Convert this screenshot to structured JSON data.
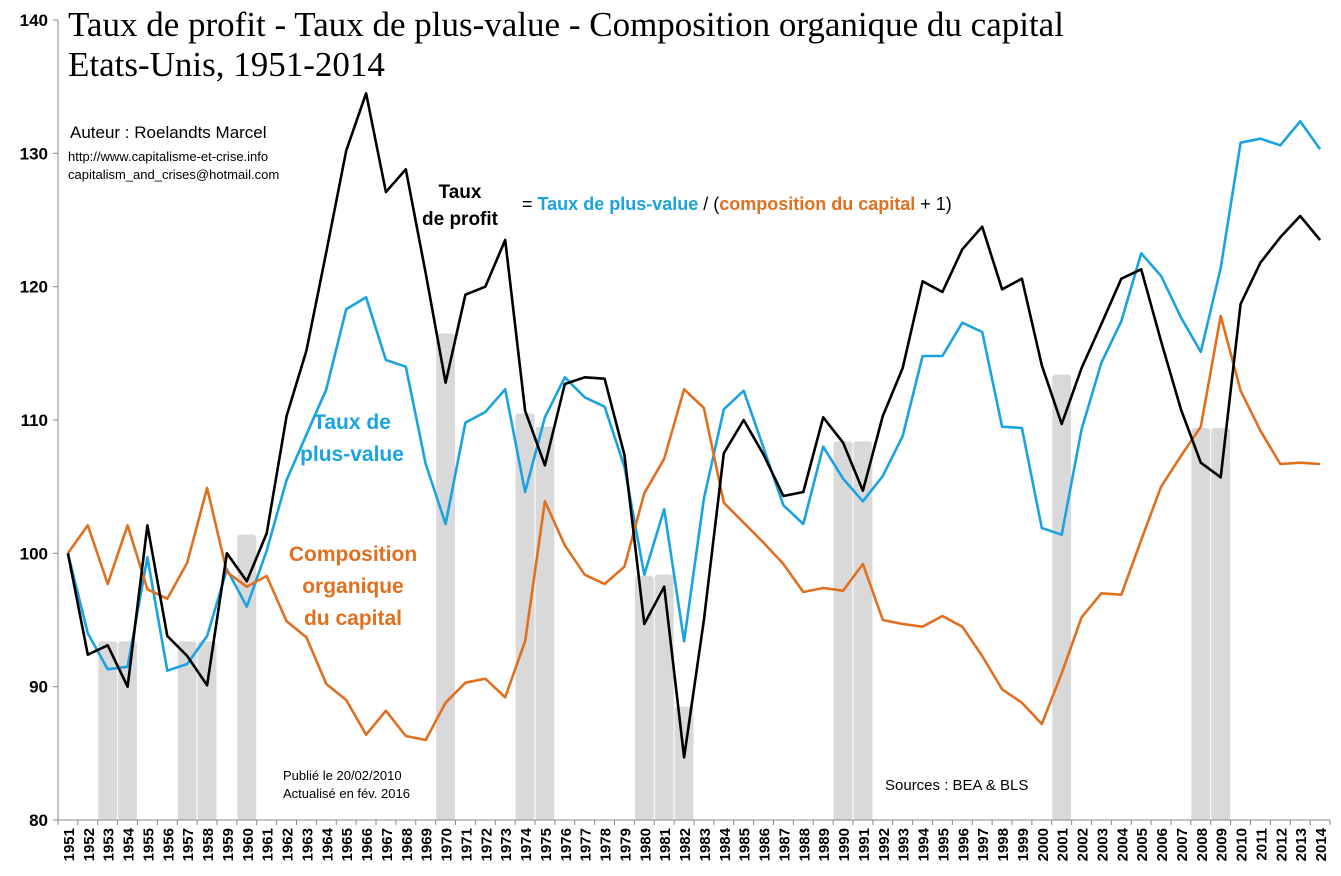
{
  "chart_data": {
    "type": "line",
    "title": [
      "Taux de profit - Taux de plus-value - Composition organique du capital",
      "Etats-Unis, 1951-2014"
    ],
    "author": [
      "Auteur : Roelandts Marcel",
      "http://www.capitalisme-et-crise.info",
      "capitalism_and_crises@hotmail.com"
    ],
    "formula": {
      "left": [
        "Taux",
        "de profit"
      ],
      "parts": [
        {
          "text": "= ",
          "color": "#000000"
        },
        {
          "text": "Taux de plus-value",
          "color": "#1aa3e0"
        },
        {
          "text": " / (",
          "color": "#000000"
        },
        {
          "text": "composition du capital",
          "color": "#e07020"
        },
        {
          "text": " + 1)",
          "color": "#000000"
        }
      ]
    },
    "annotations": [
      {
        "lines": [
          "Taux de",
          "plus-value"
        ],
        "color": "#1aa3e0"
      },
      {
        "lines": [
          "Composition",
          "organique",
          "du capital"
        ],
        "color": "#e07020"
      },
      {
        "lines": [
          "Publié le 20/02/2010",
          "Actualisé en fév. 2016"
        ],
        "color": "#000000"
      },
      {
        "lines": [
          "Sources : BEA & BLS"
        ],
        "color": "#000000"
      }
    ],
    "categories": [
      "1951",
      "1952",
      "1953",
      "1954",
      "1955",
      "1956",
      "1957",
      "1958",
      "1959",
      "1960",
      "1961",
      "1962",
      "1963",
      "1964",
      "1965",
      "1966",
      "1967",
      "1968",
      "1969",
      "1970",
      "1971",
      "1972",
      "1973",
      "1974",
      "1975",
      "1976",
      "1977",
      "1978",
      "1979",
      "1980",
      "1981",
      "1982",
      "1983",
      "1984",
      "1985",
      "1986",
      "1987",
      "1988",
      "1989",
      "1990",
      "1991",
      "1992",
      "1993",
      "1994",
      "1995",
      "1996",
      "1997",
      "1998",
      "1999",
      "2000",
      "2001",
      "2002",
      "2003",
      "2004",
      "2005",
      "2006",
      "2007",
      "2008",
      "2009",
      "2010",
      "2011",
      "2012",
      "2013",
      "2014"
    ],
    "series": [
      {
        "type": "bar",
        "color": "#d9d9d9",
        "values": [
          null,
          null,
          93.4,
          93.4,
          null,
          null,
          93.4,
          93.4,
          null,
          101.4,
          null,
          null,
          null,
          null,
          null,
          null,
          null,
          null,
          null,
          116.5,
          null,
          null,
          null,
          110.5,
          109.5,
          null,
          null,
          null,
          null,
          98.3,
          98.4,
          88.5,
          null,
          null,
          null,
          null,
          null,
          null,
          null,
          108.4,
          108.4,
          null,
          null,
          null,
          null,
          null,
          null,
          null,
          null,
          null,
          113.4,
          null,
          null,
          null,
          null,
          null,
          null,
          109.4,
          109.4,
          null,
          null,
          null,
          null,
          null
        ]
      },
      {
        "type": "line",
        "color": "#1aa3e0",
        "values": [
          100,
          94.0,
          91.3,
          91.5,
          99.7,
          91.2,
          91.7,
          93.8,
          98.8,
          96.0,
          100.2,
          105.5,
          108.9,
          112.3,
          118.3,
          119.2,
          114.5,
          114.0,
          106.7,
          102.2,
          109.8,
          110.6,
          112.3,
          104.6,
          110.2,
          113.2,
          111.7,
          111.0,
          106.5,
          98.4,
          103.3,
          93.4,
          104.1,
          110.8,
          112.2,
          107.9,
          103.6,
          102.2,
          108.0,
          105.6,
          103.9,
          105.8,
          108.8,
          114.8,
          114.8,
          117.3,
          116.6,
          109.5,
          109.4,
          101.9,
          101.4,
          109.3,
          114.3,
          117.4,
          122.5,
          120.8,
          117.7,
          115.1,
          121.4,
          130.8,
          131.1,
          130.6,
          132.4,
          130.3
        ]
      },
      {
        "type": "line",
        "color": "#e07020",
        "values": [
          100,
          102.1,
          97.7,
          102.1,
          97.3,
          96.6,
          99.3,
          104.9,
          98.6,
          97.5,
          98.3,
          94.9,
          93.7,
          90.2,
          89.0,
          86.4,
          88.2,
          86.3,
          86.0,
          88.8,
          90.3,
          90.6,
          89.2,
          93.4,
          103.9,
          100.6,
          98.4,
          97.7,
          99.0,
          104.5,
          107.1,
          112.3,
          110.9,
          103.8,
          102.3,
          100.8,
          99.2,
          97.1,
          97.4,
          97.2,
          99.2,
          95.0,
          94.7,
          94.5,
          95.3,
          94.5,
          92.3,
          89.8,
          88.8,
          87.2,
          91.0,
          95.2,
          97.0,
          96.9,
          101.0,
          105.0,
          107.3,
          109.5,
          117.8,
          112.2,
          109.2,
          106.7,
          106.8,
          106.7
        ]
      },
      {
        "type": "line",
        "color": "#000000",
        "values": [
          100,
          92.4,
          93.1,
          90.0,
          102.1,
          93.8,
          92.3,
          90.1,
          100.0,
          97.9,
          101.5,
          110.3,
          115.2,
          122.6,
          130.2,
          134.5,
          127.1,
          128.8,
          121.0,
          112.8,
          119.4,
          120.0,
          123.5,
          110.7,
          106.6,
          112.7,
          113.2,
          113.1,
          107.4,
          94.7,
          97.5,
          84.7,
          95.0,
          107.5,
          110.0,
          107.4,
          104.3,
          104.6,
          110.2,
          108.3,
          104.7,
          110.3,
          113.9,
          120.4,
          119.6,
          122.8,
          124.5,
          119.8,
          120.6,
          114.1,
          109.7,
          113.9,
          117.2,
          120.6,
          121.3,
          115.9,
          110.8,
          106.8,
          105.7,
          118.7,
          121.8,
          123.7,
          125.3,
          123.5
        ]
      }
    ],
    "ylim": [
      80,
      140
    ],
    "yticks": [
      80,
      90,
      100,
      110,
      120,
      130,
      140
    ],
    "grid": false
  }
}
